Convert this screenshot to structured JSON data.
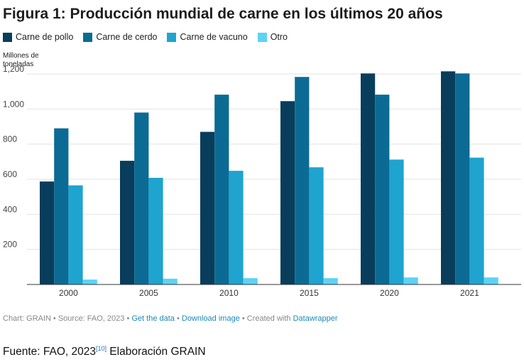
{
  "chart_data": {
    "type": "bar",
    "title": "Figura 1: Producción mundial de carne en los últimos 20 años",
    "ylabel_lines": [
      "Millones de",
      "toneladas"
    ],
    "categories": [
      "2000",
      "2005",
      "2010",
      "2015",
      "2020",
      "2021"
    ],
    "series": [
      {
        "name": "Carne de pollo",
        "color": "#083d5c",
        "values": [
          587,
          705,
          870,
          1045,
          1203,
          1215
        ]
      },
      {
        "name": "Carne de cerdo",
        "color": "#0b6b94",
        "values": [
          890,
          980,
          1082,
          1183,
          1082,
          1203
        ]
      },
      {
        "name": "Carne de vacuno",
        "color": "#1ea4cf",
        "values": [
          565,
          608,
          648,
          668,
          712,
          723
        ]
      },
      {
        "name": "Otro",
        "color": "#5cd3f5",
        "values": [
          28,
          33,
          36,
          36,
          40,
          40
        ]
      }
    ],
    "yticks": [
      200,
      400,
      600,
      800,
      1000,
      1200
    ],
    "ytick_labels": [
      "200",
      "400",
      "600",
      "800",
      "1,000",
      "1,200"
    ],
    "ylim": [
      0,
      1250
    ],
    "grid": true,
    "legend_position": "top-left"
  },
  "footer": {
    "notes": {
      "chart": "Chart: GRAIN",
      "sep1": " • ",
      "source": "Source: FAO, 2023",
      "sep2": " • ",
      "get_data": "Get the data",
      "sep3": " • ",
      "download": "Download image",
      "sep4": " • ",
      "created": "Created with ",
      "tool": "Datawrapper"
    },
    "source_prefix": "Fuente: FAO, 2023",
    "source_ref": "[10]",
    "source_suffix": " Elaboración GRAIN"
  }
}
